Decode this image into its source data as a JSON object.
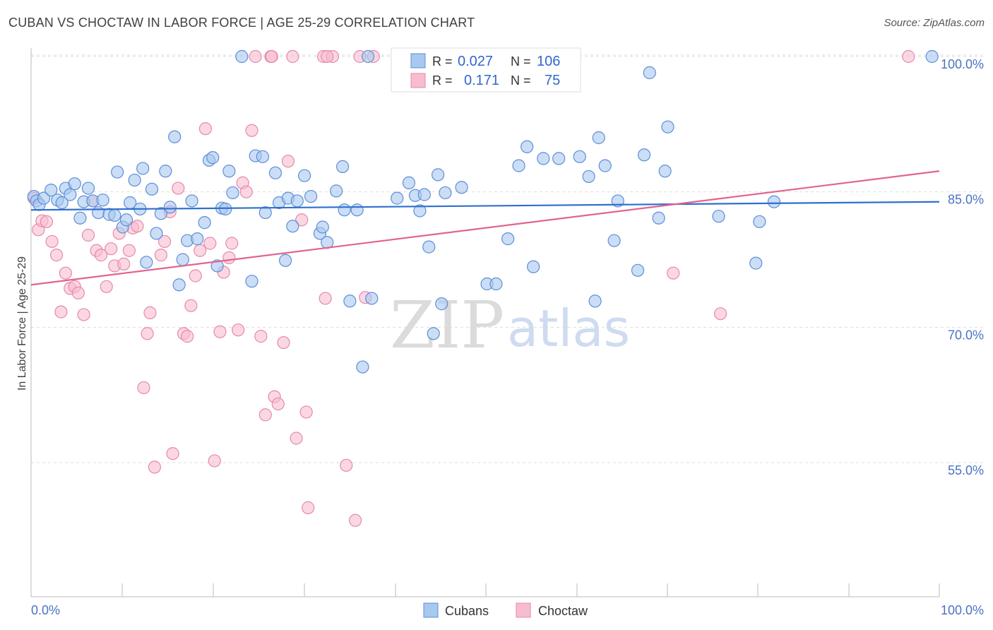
{
  "header": {
    "title": "CUBAN VS CHOCTAW IN LABOR FORCE | AGE 25-29 CORRELATION CHART",
    "source": "Source: ZipAtlas.com"
  },
  "watermark": {
    "zip": "ZIP",
    "atlas": "atlas"
  },
  "colors": {
    "cubans_fill": "#a8c8f0",
    "cubans_stroke": "#5b8fd6",
    "cubans_line": "#2f6fcf",
    "choctaw_fill": "#f8bcd0",
    "choctaw_stroke": "#e58aa8",
    "choctaw_line": "#e0648f",
    "tick_text": "#4a72c4",
    "grid": "#dddddd"
  },
  "stats_legend": {
    "cubans": {
      "r_label": "R =",
      "r_value": "0.027",
      "n_label": "N =",
      "n_value": "106"
    },
    "choctaw": {
      "r_label": "R =",
      "r_value": "0.171",
      "n_label": "N =",
      "n_value": "75"
    }
  },
  "chart_data": {
    "type": "scatter",
    "title": "CUBAN VS CHOCTAW IN LABOR FORCE | AGE 25-29 CORRELATION CHART",
    "xlabel": "",
    "ylabel": "In Labor Force | Age 25-29",
    "xlim": [
      0,
      100
    ],
    "ylim": [
      40,
      101
    ],
    "x_tick_labels": [
      "0.0%",
      "100.0%"
    ],
    "y_ticks": [
      55,
      70,
      85,
      100
    ],
    "y_tick_labels": [
      "55.0%",
      "70.0%",
      "85.0%",
      "100.0%"
    ],
    "grid": true,
    "legend": "bottom-center",
    "series": [
      {
        "name": "Cubans",
        "trend": {
          "x": [
            0,
            100
          ],
          "y": [
            83.0,
            83.9
          ]
        },
        "points": [
          [
            0.3,
            84.5
          ],
          [
            0.6,
            84.0
          ],
          [
            0.9,
            83.6
          ],
          [
            1.4,
            84.3
          ],
          [
            2.2,
            85.2
          ],
          [
            2.9,
            84.1
          ],
          [
            3.4,
            83.8
          ],
          [
            3.8,
            85.4
          ],
          [
            4.3,
            84.7
          ],
          [
            4.8,
            85.9
          ],
          [
            5.4,
            82.1
          ],
          [
            5.8,
            83.9
          ],
          [
            6.3,
            85.4
          ],
          [
            6.8,
            84.0
          ],
          [
            7.4,
            82.7
          ],
          [
            7.9,
            84.1
          ],
          [
            8.6,
            82.5
          ],
          [
            9.2,
            82.4
          ],
          [
            9.5,
            87.2
          ],
          [
            10.1,
            81.1
          ],
          [
            10.5,
            81.9
          ],
          [
            10.9,
            83.8
          ],
          [
            11.4,
            86.3
          ],
          [
            12.0,
            83.1
          ],
          [
            12.3,
            87.6
          ],
          [
            12.7,
            77.2
          ],
          [
            13.3,
            85.3
          ],
          [
            13.8,
            80.4
          ],
          [
            14.3,
            82.6
          ],
          [
            14.8,
            87.3
          ],
          [
            15.3,
            83.3
          ],
          [
            15.8,
            91.1
          ],
          [
            16.3,
            74.7
          ],
          [
            16.7,
            77.5
          ],
          [
            17.2,
            79.6
          ],
          [
            17.7,
            84.0
          ],
          [
            18.3,
            79.8
          ],
          [
            19.1,
            81.6
          ],
          [
            19.6,
            88.5
          ],
          [
            20.0,
            88.8
          ],
          [
            20.5,
            76.8
          ],
          [
            21.0,
            83.2
          ],
          [
            21.4,
            83.1
          ],
          [
            21.8,
            87.3
          ],
          [
            22.2,
            84.9
          ],
          [
            23.2,
            100.0
          ],
          [
            24.3,
            75.1
          ],
          [
            24.7,
            89.0
          ],
          [
            25.5,
            88.9
          ],
          [
            25.8,
            82.7
          ],
          [
            26.9,
            87.1
          ],
          [
            27.3,
            83.8
          ],
          [
            28.0,
            77.4
          ],
          [
            28.3,
            84.3
          ],
          [
            28.8,
            81.2
          ],
          [
            29.3,
            84.0
          ],
          [
            30.1,
            86.8
          ],
          [
            30.8,
            84.5
          ],
          [
            31.8,
            80.4
          ],
          [
            32.1,
            81.1
          ],
          [
            32.6,
            79.4
          ],
          [
            33.6,
            85.1
          ],
          [
            34.3,
            87.8
          ],
          [
            34.5,
            83.0
          ],
          [
            35.1,
            72.9
          ],
          [
            35.9,
            83.0
          ],
          [
            36.5,
            65.6
          ],
          [
            37.1,
            100.0
          ],
          [
            37.5,
            73.2
          ],
          [
            40.3,
            84.3
          ],
          [
            41.6,
            86.0
          ],
          [
            42.3,
            84.6
          ],
          [
            42.8,
            82.9
          ],
          [
            43.3,
            84.7
          ],
          [
            43.8,
            78.9
          ],
          [
            44.3,
            69.3
          ],
          [
            44.8,
            86.9
          ],
          [
            45.2,
            72.6
          ],
          [
            45.6,
            84.9
          ],
          [
            47.4,
            85.5
          ],
          [
            50.2,
            74.8
          ],
          [
            51.2,
            74.8
          ],
          [
            52.5,
            79.8
          ],
          [
            53.7,
            87.9
          ],
          [
            54.6,
            90.0
          ],
          [
            55.3,
            76.7
          ],
          [
            56.4,
            88.7
          ],
          [
            58.1,
            88.7
          ],
          [
            60.4,
            88.9
          ],
          [
            61.4,
            86.7
          ],
          [
            62.1,
            72.9
          ],
          [
            62.5,
            91.0
          ],
          [
            63.2,
            87.9
          ],
          [
            64.2,
            79.6
          ],
          [
            64.6,
            84.0
          ],
          [
            66.8,
            76.3
          ],
          [
            67.5,
            89.1
          ],
          [
            68.1,
            98.2
          ],
          [
            69.1,
            82.1
          ],
          [
            69.8,
            87.3
          ],
          [
            70.1,
            92.2
          ],
          [
            75.7,
            82.3
          ],
          [
            79.8,
            77.1
          ],
          [
            80.2,
            81.7
          ],
          [
            81.8,
            83.9
          ],
          [
            99.2,
            100.0
          ]
        ]
      },
      {
        "name": "Choctaw",
        "trend": {
          "x": [
            0,
            100
          ],
          "y": [
            74.7,
            87.3
          ]
        },
        "points": [
          [
            0.3,
            84.3
          ],
          [
            0.8,
            80.8
          ],
          [
            1.2,
            81.8
          ],
          [
            1.7,
            81.7
          ],
          [
            2.3,
            79.5
          ],
          [
            2.8,
            78.0
          ],
          [
            3.3,
            71.7
          ],
          [
            3.8,
            76.0
          ],
          [
            4.3,
            74.3
          ],
          [
            4.8,
            74.5
          ],
          [
            5.2,
            73.8
          ],
          [
            5.8,
            71.4
          ],
          [
            6.3,
            80.2
          ],
          [
            6.8,
            84.0
          ],
          [
            7.2,
            78.5
          ],
          [
            7.7,
            78.0
          ],
          [
            8.3,
            74.5
          ],
          [
            8.8,
            78.7
          ],
          [
            9.2,
            76.8
          ],
          [
            9.7,
            80.4
          ],
          [
            10.2,
            77.0
          ],
          [
            10.8,
            78.5
          ],
          [
            11.2,
            81.0
          ],
          [
            11.7,
            81.2
          ],
          [
            12.4,
            63.3
          ],
          [
            12.8,
            69.3
          ],
          [
            13.1,
            71.6
          ],
          [
            13.6,
            54.5
          ],
          [
            14.3,
            78.0
          ],
          [
            14.7,
            79.5
          ],
          [
            15.3,
            82.8
          ],
          [
            15.6,
            56.0
          ],
          [
            16.2,
            85.4
          ],
          [
            16.8,
            69.3
          ],
          [
            17.2,
            69.0
          ],
          [
            17.6,
            72.4
          ],
          [
            18.1,
            75.7
          ],
          [
            18.6,
            78.5
          ],
          [
            19.2,
            92.0
          ],
          [
            19.7,
            79.3
          ],
          [
            20.2,
            55.2
          ],
          [
            20.8,
            69.5
          ],
          [
            21.2,
            76.1
          ],
          [
            21.8,
            77.7
          ],
          [
            22.1,
            79.3
          ],
          [
            22.8,
            69.7
          ],
          [
            23.3,
            86.0
          ],
          [
            23.7,
            85.0
          ],
          [
            24.3,
            91.8
          ],
          [
            24.7,
            100.0
          ],
          [
            25.3,
            69.0
          ],
          [
            25.8,
            60.3
          ],
          [
            26.4,
            100.0
          ],
          [
            26.8,
            62.3
          ],
          [
            27.2,
            61.5
          ],
          [
            27.8,
            68.3
          ],
          [
            28.3,
            88.4
          ],
          [
            28.8,
            100.0
          ],
          [
            29.2,
            57.7
          ],
          [
            29.8,
            81.9
          ],
          [
            30.3,
            60.6
          ],
          [
            30.5,
            50.0
          ],
          [
            32.2,
            100.0
          ],
          [
            32.4,
            73.2
          ],
          [
            33.2,
            100.0
          ],
          [
            34.7,
            54.7
          ],
          [
            35.7,
            48.6
          ],
          [
            36.2,
            100.0
          ],
          [
            36.8,
            73.3
          ],
          [
            37.7,
            100.0
          ],
          [
            70.7,
            76.0
          ],
          [
            75.9,
            71.5
          ],
          [
            96.6,
            100.0
          ],
          [
            26.5,
            100.0
          ],
          [
            32.6,
            100.0
          ]
        ]
      }
    ]
  },
  "bottom_legend": {
    "cubans": "Cubans",
    "choctaw": "Choctaw"
  }
}
